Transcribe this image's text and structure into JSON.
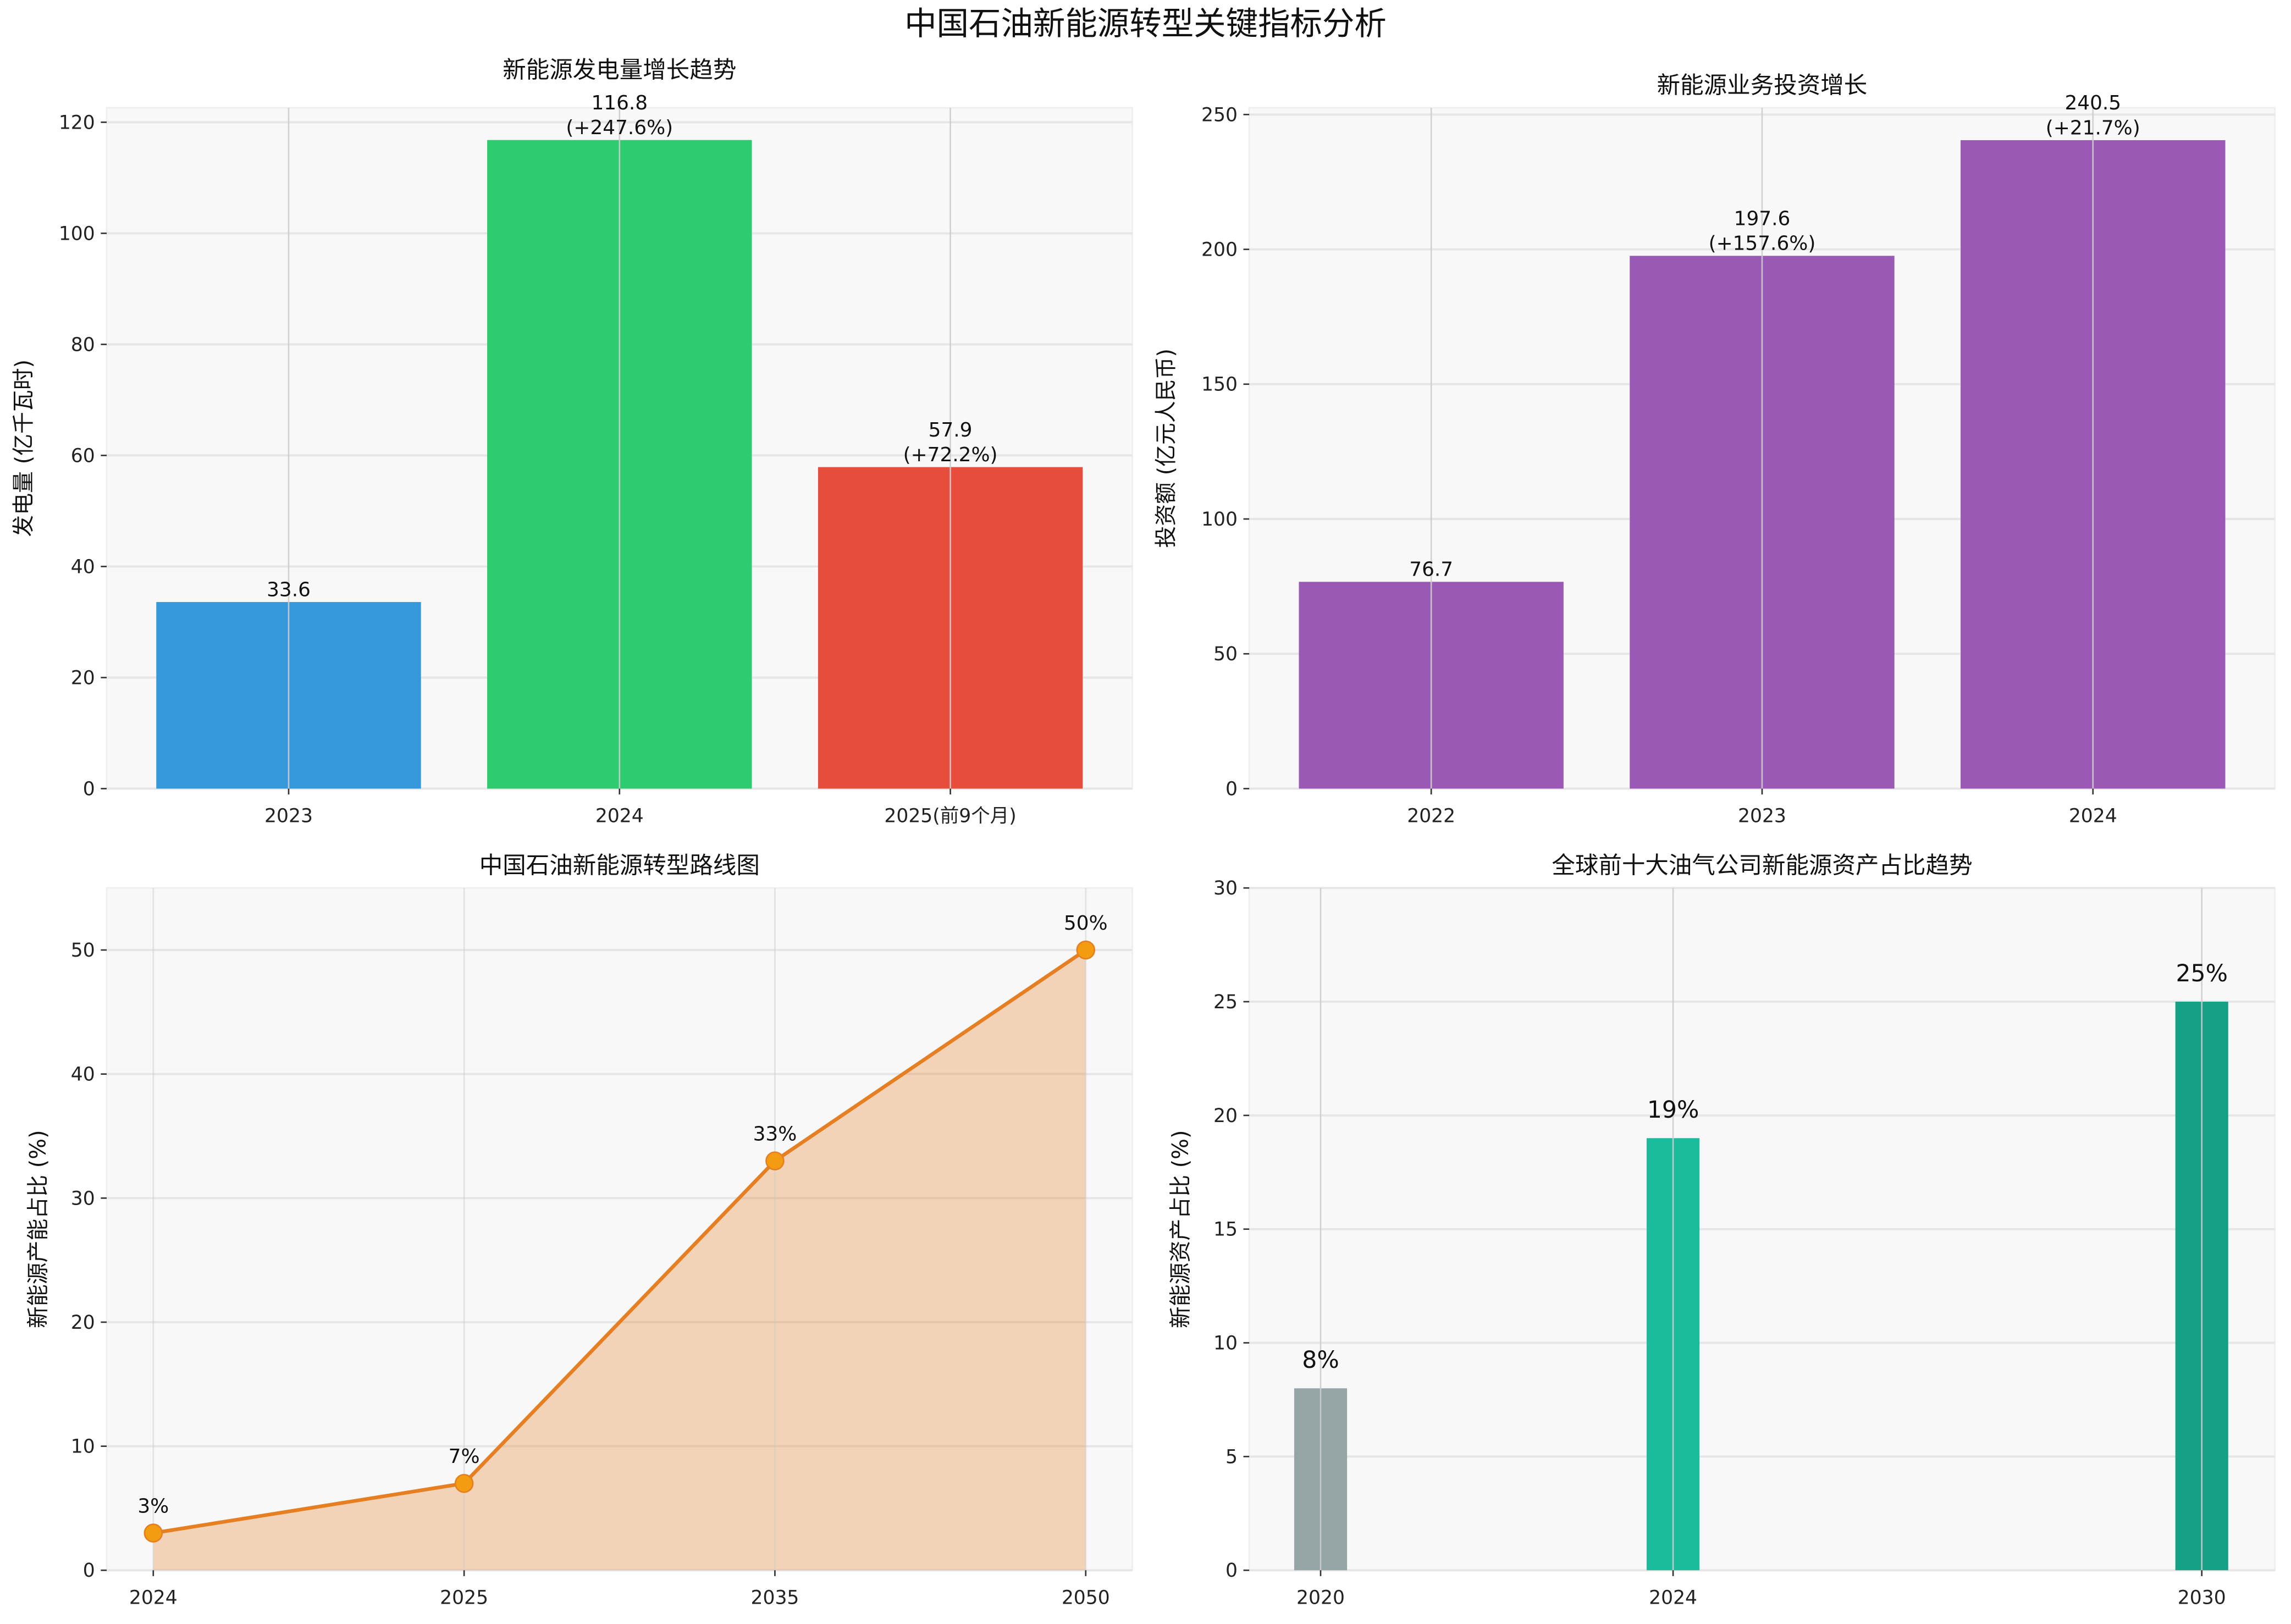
{
  "title": "中国石油新能源转型关键指标分析",
  "chart_data": [
    {
      "type": "bar",
      "title": "新能源发电量增长趋势",
      "ylabel": "发电量 (亿千瓦时)",
      "categories": [
        "2023",
        "2024",
        "2025(前9个月)"
      ],
      "values": [
        33.6,
        116.8,
        57.9
      ],
      "data_labels": [
        "33.6",
        "116.8\n(+247.6%)",
        "57.9\n(+72.2%)"
      ],
      "colors": [
        "#3498db",
        "#2ecc71",
        "#e74c3c"
      ],
      "ylim": [
        0,
        122.6
      ],
      "yticks": [
        0,
        20,
        40,
        60,
        80,
        100,
        120
      ],
      "grid": true
    },
    {
      "type": "bar",
      "title": "新能源业务投资增长",
      "ylabel": "投资额 (亿元人民币)",
      "categories": [
        "2022",
        "2023",
        "2024"
      ],
      "values": [
        76.7,
        197.6,
        240.5
      ],
      "data_labels": [
        "76.7",
        "197.6\n(+157.6%)",
        "240.5\n(+21.7%)"
      ],
      "colors": [
        "#9b59b6",
        "#9b59b6",
        "#9b59b6"
      ],
      "ylim": [
        0,
        252.5
      ],
      "yticks": [
        0,
        50,
        100,
        150,
        200,
        250
      ],
      "grid": true
    },
    {
      "type": "area",
      "title": "中国石油新能源转型路线图",
      "ylabel": "新能源产能占比 (%)",
      "categories": [
        "2024",
        "2025",
        "2035",
        "2050"
      ],
      "values": [
        3,
        7,
        33,
        50
      ],
      "data_labels": [
        "3%",
        "7%",
        "33%",
        "50%"
      ],
      "colors": [
        "#e67e22",
        "#f39c12"
      ],
      "ylim": [
        0,
        55
      ],
      "yticks": [
        0,
        10,
        20,
        30,
        40,
        50
      ],
      "grid": true
    },
    {
      "type": "bar",
      "title": "全球前十大油气公司新能源资产占比趋势",
      "ylabel": "新能源资产占比 (%)",
      "x": [
        2020,
        2024,
        2030
      ],
      "categories": [
        "2020",
        "2024",
        "2030"
      ],
      "values": [
        8,
        19,
        25
      ],
      "data_labels": [
        "8%",
        "19%",
        "25%"
      ],
      "colors": [
        "#95a5a6",
        "#1abc9c",
        "#16a085"
      ],
      "xlim": [
        2019.19,
        2030.83
      ],
      "ylim": [
        0,
        30
      ],
      "yticks": [
        0,
        5,
        10,
        15,
        20,
        25,
        30
      ],
      "grid": true
    }
  ]
}
